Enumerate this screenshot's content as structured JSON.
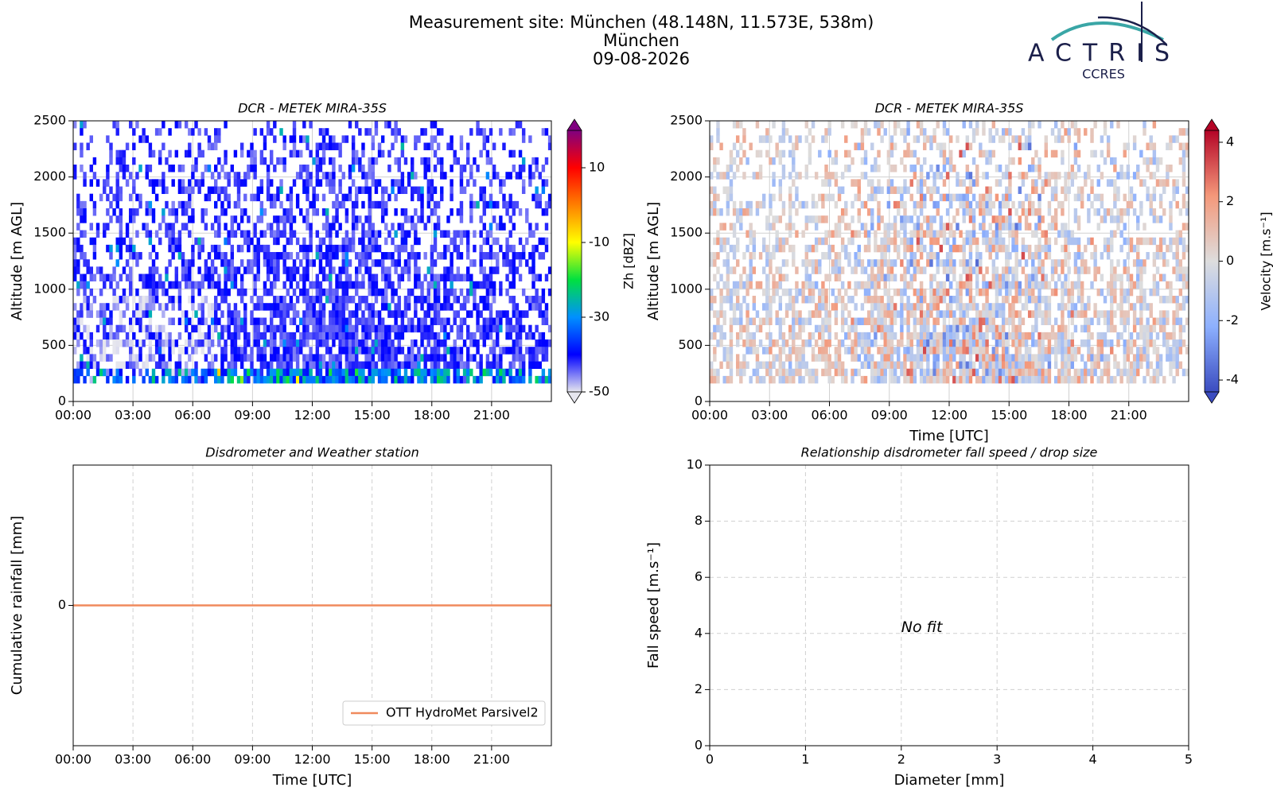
{
  "header": {
    "lines": [
      "Measurement site: München (48.148N, 11.573E, 538m)",
      "München",
      "09-08-2026"
    ],
    "logo": {
      "name": "ACTRIS",
      "sub": "CCRES"
    }
  },
  "chart_data": [
    {
      "type": "heatmap",
      "title": "DCR - METEK MIRA-35S",
      "y_label": "Altitude [m AGL]",
      "xlim": [
        0,
        24
      ],
      "xticks": [
        {
          "value": 0,
          "label": "00:00"
        },
        {
          "value": 3,
          "label": "03:00"
        },
        {
          "value": 6,
          "label": "06:00"
        },
        {
          "value": 9,
          "label": "09:00"
        },
        {
          "value": 12,
          "label": "12:00"
        },
        {
          "value": 15,
          "label": "15:00"
        },
        {
          "value": 18,
          "label": "18:00"
        },
        {
          "value": 21,
          "label": "21:00"
        }
      ],
      "ylim": [
        0,
        2500
      ],
      "yticks": [
        0,
        500,
        1000,
        1500,
        2000,
        2500
      ],
      "grid": true,
      "colorbar": {
        "label": "Zh [dBZ]",
        "lim": [
          -50,
          20
        ],
        "ticks": [
          -50,
          -30,
          -10,
          10
        ],
        "colors": [
          "#e6e6ee",
          "#0000ff",
          "#0090ff",
          "#00e040",
          "#ffff00",
          "#ff8000",
          "#ff0000",
          "#800080"
        ]
      }
    },
    {
      "type": "heatmap",
      "title": "DCR - METEK MIRA-35S",
      "y_label": "Altitude [m AGL]",
      "x_label": "Time [UTC]",
      "xlim": [
        0,
        24
      ],
      "xticks": [
        {
          "value": 0,
          "label": "00:00"
        },
        {
          "value": 3,
          "label": "03:00"
        },
        {
          "value": 6,
          "label": "06:00"
        },
        {
          "value": 9,
          "label": "09:00"
        },
        {
          "value": 12,
          "label": "12:00"
        },
        {
          "value": 15,
          "label": "15:00"
        },
        {
          "value": 18,
          "label": "18:00"
        },
        {
          "value": 21,
          "label": "21:00"
        }
      ],
      "ylim": [
        0,
        2500
      ],
      "yticks": [
        0,
        500,
        1000,
        1500,
        2000,
        2500
      ],
      "grid": true,
      "colorbar": {
        "label": "Velocity [m.s⁻¹]",
        "lim": [
          -4.4,
          4.4
        ],
        "ticks": [
          -4,
          -2,
          0,
          2,
          4
        ],
        "colors": [
          "#3b4cc0",
          "#8db0fe",
          "#dddddd",
          "#f4987a",
          "#b40426"
        ]
      }
    },
    {
      "type": "line",
      "title": "Disdrometer and Weather station",
      "y_label": "Cumulative rainfall [mm]",
      "x_label": "Time [UTC]",
      "xlim": [
        0,
        24
      ],
      "xticks": [
        {
          "value": 0,
          "label": "00:00"
        },
        {
          "value": 3,
          "label": "03:00"
        },
        {
          "value": 6,
          "label": "06:00"
        },
        {
          "value": 9,
          "label": "09:00"
        },
        {
          "value": 12,
          "label": "12:00"
        },
        {
          "value": 15,
          "label": "15:00"
        },
        {
          "value": 18,
          "label": "18:00"
        },
        {
          "value": 21,
          "label": "21:00"
        }
      ],
      "ylim": [
        -1,
        1
      ],
      "yticks": [
        0
      ],
      "grid": true,
      "legend": "lower right",
      "x": [
        0,
        24
      ],
      "series": [
        {
          "name": "OTT HydroMet Parsivel2",
          "color": "#f08a5d",
          "values": [
            0,
            0
          ]
        }
      ]
    },
    {
      "type": "scatter",
      "title": "Relationship disdrometer fall speed / drop size",
      "x_label": "Diameter [mm]",
      "y_label": "Fall speed [m.s⁻¹]",
      "xlim": [
        0,
        5
      ],
      "xticks": [
        0,
        1,
        2,
        3,
        4,
        5
      ],
      "ylim": [
        0,
        10
      ],
      "yticks": [
        0,
        2,
        4,
        6,
        8,
        10
      ],
      "grid": true,
      "annotation": "No fit"
    }
  ]
}
